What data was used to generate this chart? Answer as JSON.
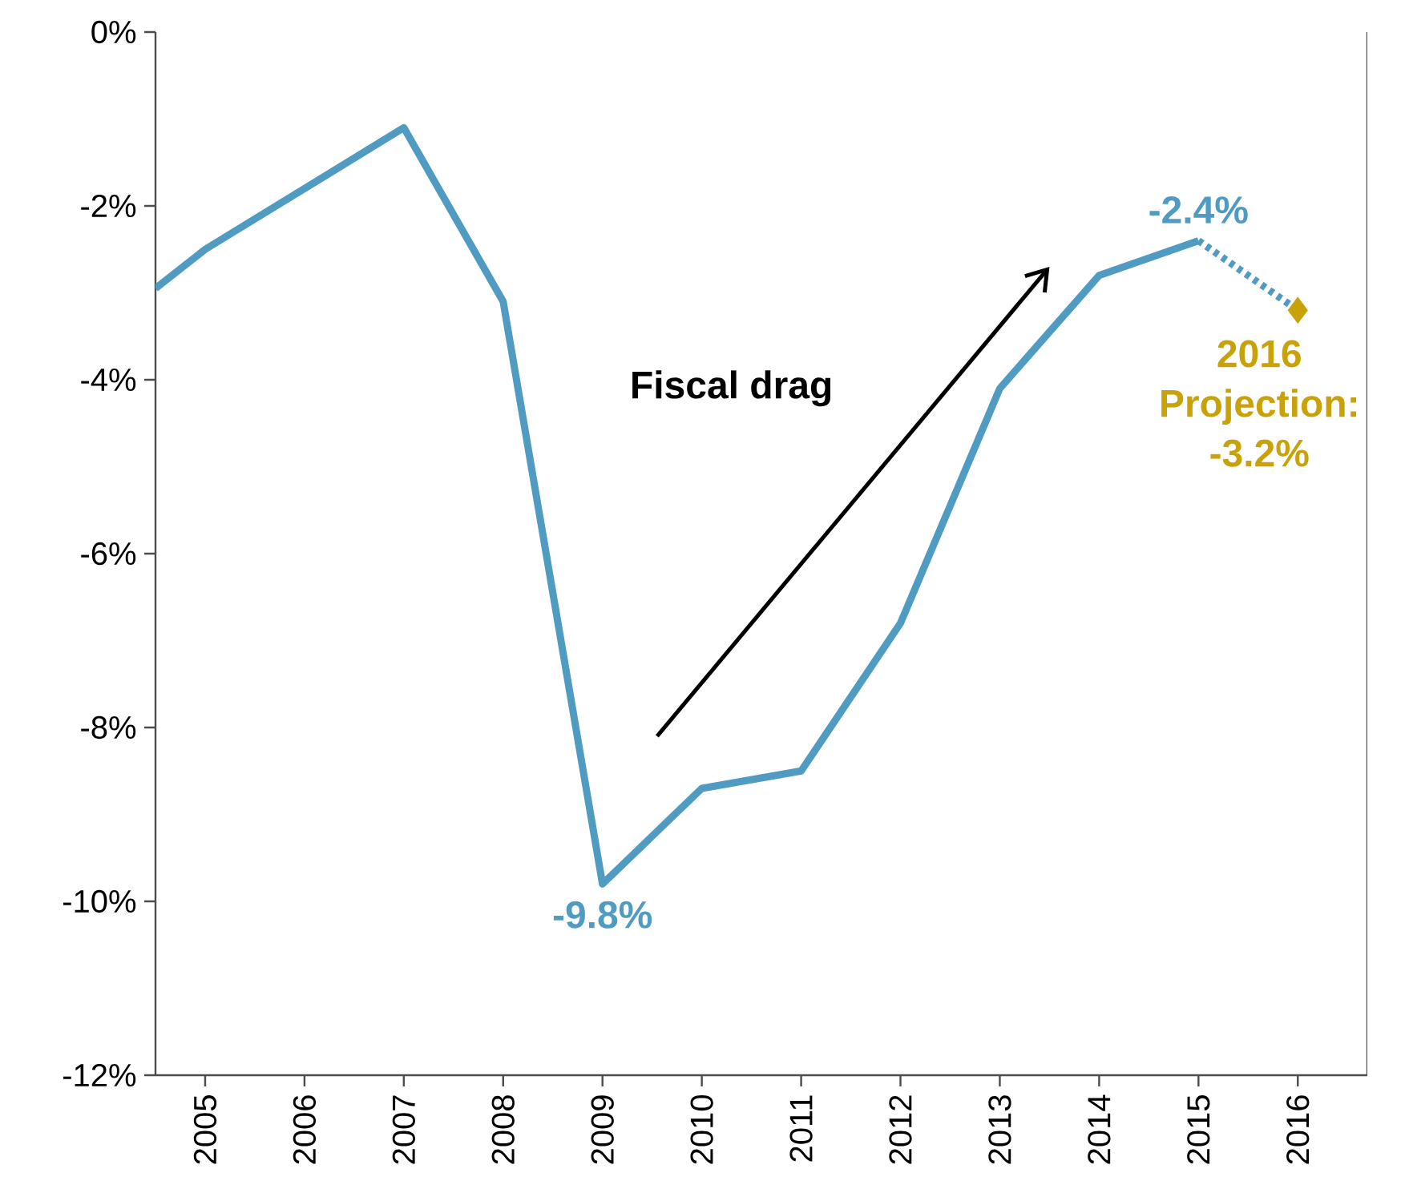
{
  "chart_data": {
    "type": "line",
    "series": [
      {
        "color": "#4f9bc2",
        "line_style": "solid",
        "x": [
          2004.5,
          2005,
          2006,
          2007,
          2008,
          2009,
          2010,
          2011,
          2012,
          2013,
          2014,
          2015
        ],
        "values": [
          -2.95,
          -2.5,
          -1.8,
          -1.1,
          -3.1,
          -9.8,
          -8.7,
          -8.5,
          -6.8,
          -4.1,
          -2.8,
          -2.4
        ]
      },
      {
        "color": "#4f9bc2",
        "line_style": "dotted",
        "x": [
          2015,
          2016
        ],
        "values": [
          -2.4,
          -3.2
        ]
      },
      {
        "type": "scatter",
        "color": "#c9a20a",
        "marker": "diamond",
        "x": [
          2016
        ],
        "values": [
          -3.2
        ]
      }
    ],
    "xlim": [
      2004.5,
      2016.7
    ],
    "xticks": [
      2005,
      2006,
      2007,
      2008,
      2009,
      2010,
      2011,
      2012,
      2013,
      2014,
      2015,
      2016
    ],
    "ylim": [
      -12,
      0
    ],
    "yticks": [
      {
        "value": -12,
        "label": "-12%"
      },
      {
        "value": -10,
        "label": "-10%"
      },
      {
        "value": -8,
        "label": "-8%"
      },
      {
        "value": -6,
        "label": "-6%"
      },
      {
        "value": -4,
        "label": "-4%"
      },
      {
        "value": -2,
        "label": "-2%"
      },
      {
        "value": 0,
        "label": "0%"
      }
    ],
    "annotations": [
      "Fiscal drag",
      {
        "text": "-9.8%",
        "x": 2009,
        "y": -9.8
      },
      {
        "text": "-2.4%",
        "x": 2015,
        "y": -2.4
      },
      {
        "text": "2016 Projection: -3.2%",
        "x": 2016,
        "y": -3.2
      }
    ]
  }
}
